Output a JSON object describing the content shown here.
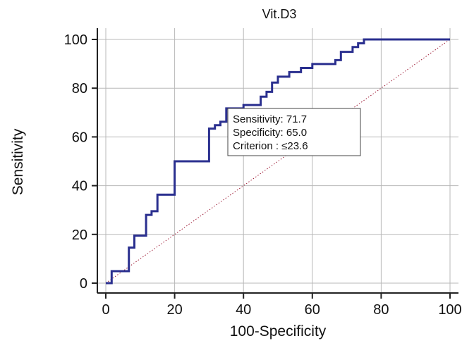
{
  "chart_data": {
    "type": "line",
    "title": "Vit.D3",
    "xlabel": "100-Specificity",
    "ylabel": "Sensitivity",
    "xlim": [
      0,
      100
    ],
    "ylim": [
      0,
      100
    ],
    "x_ticks": [
      "0",
      "20",
      "40",
      "60",
      "80",
      "100"
    ],
    "y_ticks": [
      "0",
      "20",
      "40",
      "60",
      "80",
      "100"
    ],
    "grid": true,
    "colors": {
      "roc": "#2a2f8f",
      "reference": "#a0203a",
      "grid": "#b8b8b8"
    },
    "series": [
      {
        "style": "step",
        "x": [
          0,
          1.7,
          1.7,
          6.7,
          6.7,
          8.3,
          8.3,
          11.7,
          11.7,
          13.3,
          13.3,
          15,
          15,
          20,
          20,
          30,
          30,
          31.7,
          31.7,
          33.3,
          33.3,
          35,
          35,
          40,
          40,
          45,
          45,
          46.7,
          46.7,
          48.3,
          48.3,
          50,
          50,
          53.3,
          53.3,
          56.7,
          56.7,
          60,
          60,
          66.7,
          66.7,
          68.3,
          68.3,
          71.7,
          71.7,
          73.3,
          73.3,
          75,
          75,
          83.3,
          83.3,
          100
        ],
        "y": [
          0,
          0,
          4.9,
          4.9,
          14.6,
          14.6,
          19.5,
          19.5,
          28,
          28,
          29.5,
          29.5,
          36.3,
          36.3,
          50,
          50,
          63.4,
          63.4,
          64.8,
          64.8,
          66.2,
          66.2,
          71.7,
          71.7,
          73.1,
          73.1,
          76.5,
          76.5,
          78.5,
          78.5,
          82.3,
          82.3,
          84.7,
          84.7,
          86.6,
          86.6,
          88.3,
          88.3,
          89.9,
          89.9,
          91.5,
          91.5,
          94.9,
          94.9,
          96.9,
          96.9,
          98.4,
          98.4,
          100,
          100,
          100,
          100
        ]
      },
      {
        "style": "dotted",
        "x": [
          0,
          100
        ],
        "y": [
          0,
          100
        ]
      }
    ],
    "annotations": [
      "Sensitivity: 71.7",
      "Specificity: 65.0",
      "Criterion : ≤23.6"
    ]
  }
}
